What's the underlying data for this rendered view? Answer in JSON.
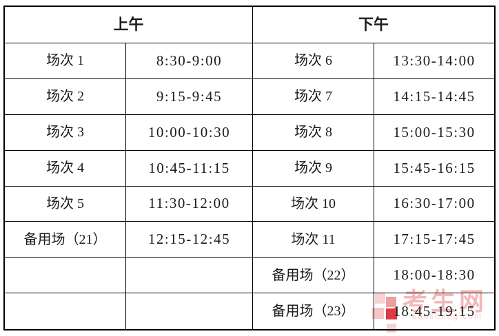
{
  "table": {
    "headers": [
      {
        "label": "上午"
      },
      {
        "label": "下午"
      }
    ],
    "rows": [
      {
        "cells": [
          "场次 1",
          "8:30-9:00",
          "场次 6",
          "13:30-14:00"
        ]
      },
      {
        "cells": [
          "场次 2",
          "9:15-9:45",
          "场次 7",
          "14:15-14:45"
        ]
      },
      {
        "cells": [
          "场次 3",
          "10:00-10:30",
          "场次 8",
          "15:00-15:30"
        ]
      },
      {
        "cells": [
          "场次 4",
          "10:45-11:15",
          "场次 9",
          "15:45-16:15"
        ]
      },
      {
        "cells": [
          "场次 5",
          "11:30-12:00",
          "场次 10",
          "16:30-17:00"
        ]
      },
      {
        "cells": [
          "备用场（21）",
          "12:15-12:45",
          "场次 11",
          "17:15-17:45"
        ]
      },
      {
        "cells": [
          "",
          "",
          "备用场（22）",
          "18:00-18:30"
        ]
      },
      {
        "cells": [
          "",
          "",
          "备用场（23）",
          "18:45-19:15"
        ]
      }
    ]
  },
  "watermark": {
    "brand": "考生网",
    "domain": "kaosheng.com",
    "colors": {
      "logo_solid_red": "#dc3a40",
      "logo_light_pink": "#f8d2d2",
      "brand_text": "#f3b8b8",
      "domain_text": "#f7cfcf"
    }
  },
  "style": {
    "border_color": "#000000",
    "text_color": "#1c1c1c",
    "background": "#ffffff"
  }
}
